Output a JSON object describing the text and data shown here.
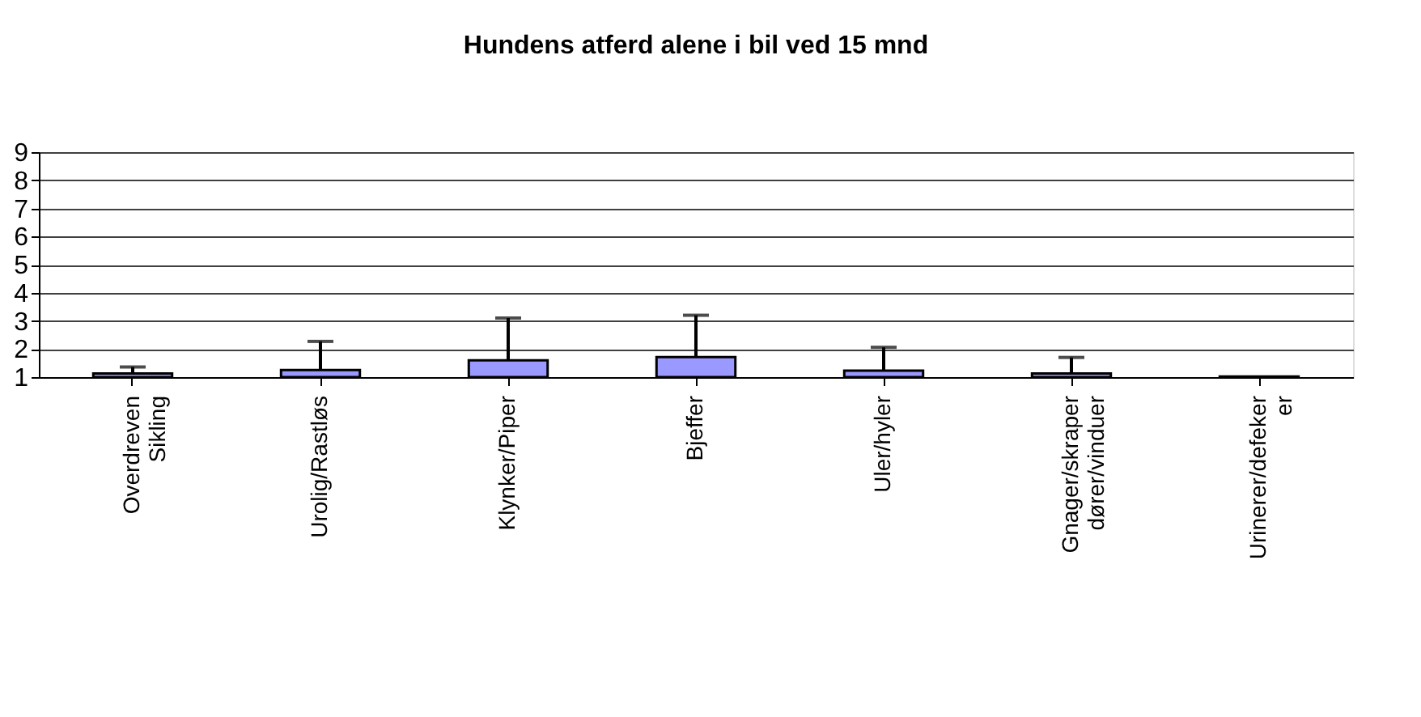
{
  "chart_data": {
    "type": "bar",
    "title": "Hundens atferd alene i bil ved 15 mnd",
    "categories": [
      "Overdreven Sikling",
      "Urolig/Rastløs",
      "Klynker/Piper",
      "Bjeffer",
      "Uler/hyler",
      "Gnager/skraper dører/vinduer",
      "Urinerer/defeker er"
    ],
    "values": [
      1.13,
      1.25,
      1.6,
      1.71,
      1.23,
      1.13,
      1.02
    ],
    "errors": [
      [
        1.13,
        1.36
      ],
      [
        1.25,
        2.27
      ],
      [
        1.6,
        3.1
      ],
      [
        1.71,
        3.2
      ],
      [
        1.23,
        2.06
      ],
      [
        1.13,
        1.7
      ],
      null
    ],
    "color": "#9999ff",
    "ylim": [
      1,
      9
    ],
    "yticks": [
      1,
      2,
      3,
      4,
      5,
      6,
      7,
      8,
      9
    ],
    "grid": "y"
  }
}
